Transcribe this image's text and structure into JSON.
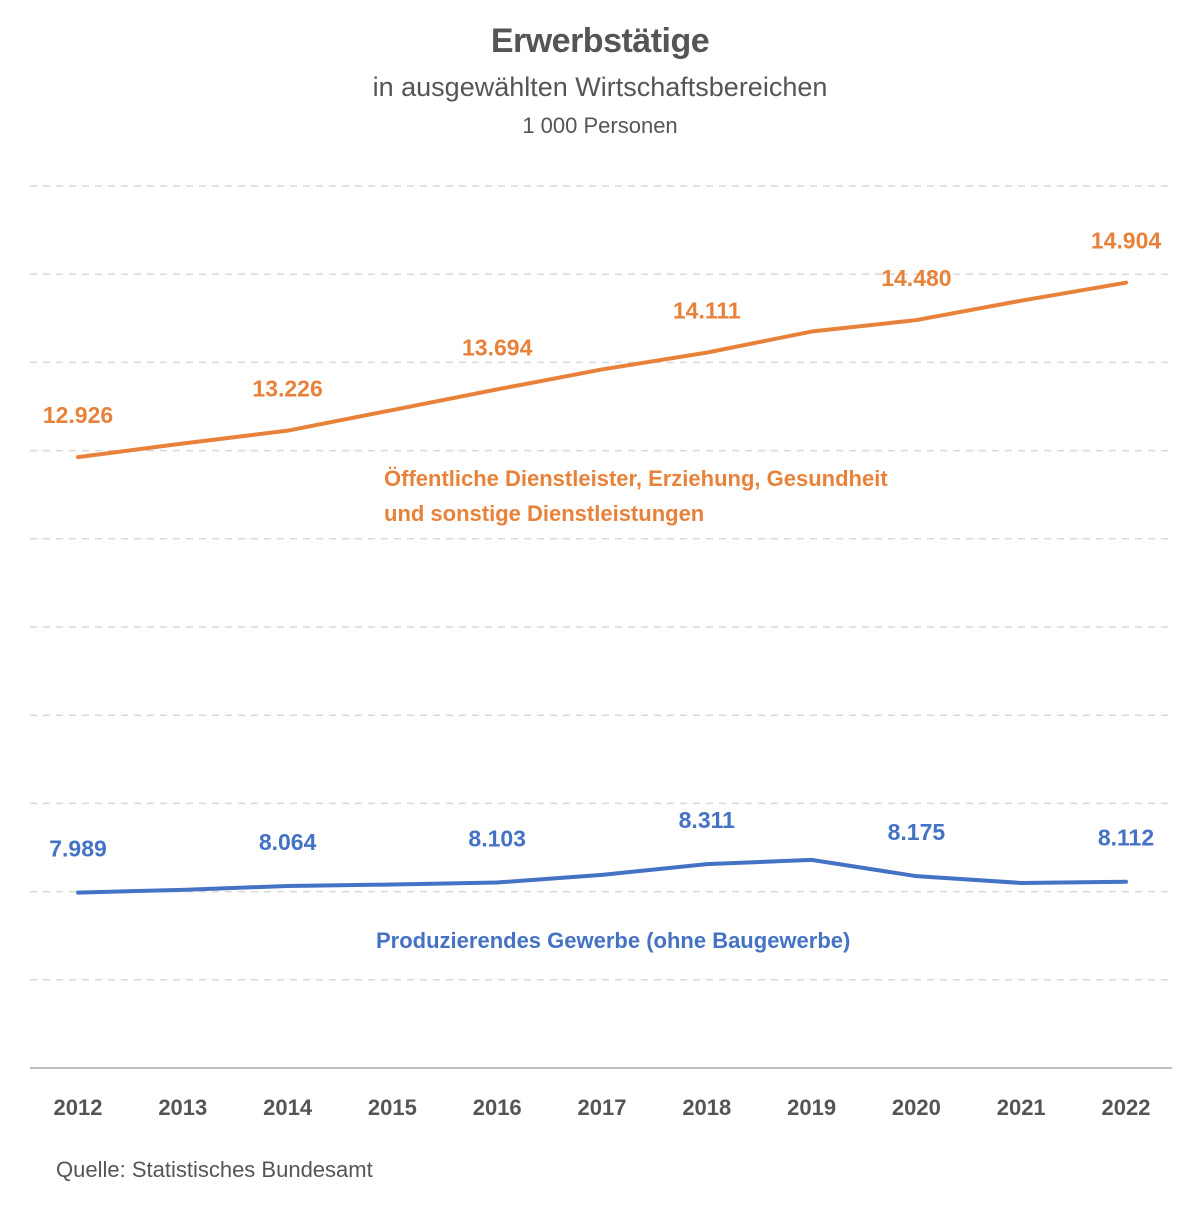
{
  "chart_data": {
    "type": "line",
    "title": "Erwerbstätige",
    "subtitle": "in ausgewählten Wirtschaftsbereichen",
    "unit": "1 000 Personen",
    "x": [
      "2012",
      "2013",
      "2014",
      "2015",
      "2016",
      "2017",
      "2018",
      "2019",
      "2020",
      "2021",
      "2022"
    ],
    "ylim": [
      6000,
      16000
    ],
    "grid": true,
    "series": [
      {
        "name": "Öffentliche Dienstleister, Erziehung, Gesundheit und sonstige Dienstleistungen",
        "name_lines": [
          "Öffentliche Dienstleister, Erziehung, Gesundheit",
          "und sonstige Dienstleistungen"
        ],
        "color": "#e8823a",
        "values": [
          12926,
          13080,
          13226,
          13460,
          13694,
          13920,
          14111,
          14350,
          14480,
          14700,
          14904
        ],
        "labels": [
          "12.926",
          "",
          "13.226",
          "",
          "13.694",
          "",
          "14.111",
          "",
          "14.480",
          "",
          "14.904"
        ]
      },
      {
        "name": "Produzierendes Gewerbe (ohne Baugewerbe)",
        "color": "#4472c4",
        "values": [
          7989,
          8020,
          8064,
          8080,
          8103,
          8190,
          8311,
          8360,
          8175,
          8098,
          8112
        ],
        "labels": [
          "7.989",
          "",
          "8.064",
          "",
          "8.103",
          "",
          "8.311",
          "",
          "8.175",
          "",
          "8.112"
        ]
      }
    ]
  },
  "source": "Quelle: Statistisches Bundesamt"
}
